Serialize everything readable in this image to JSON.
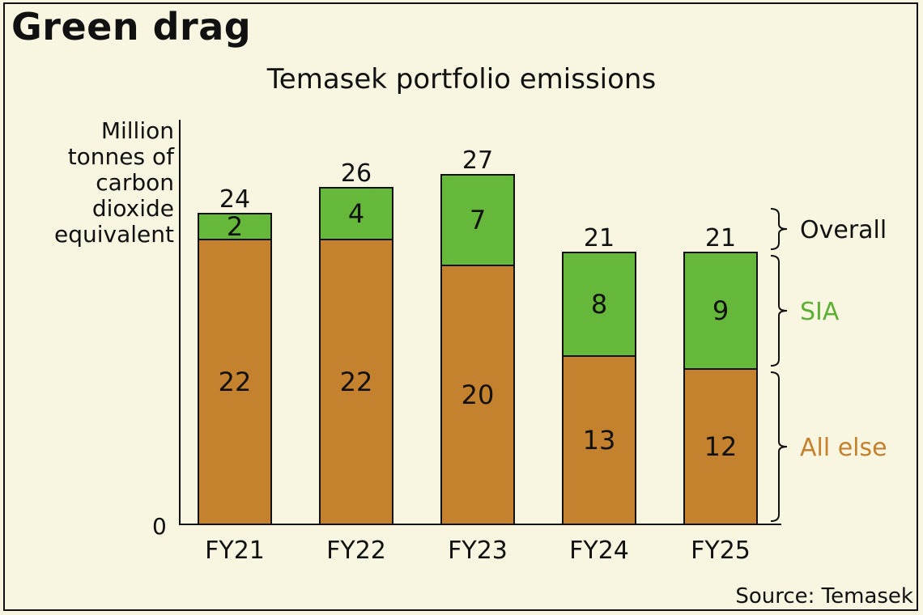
{
  "header": {
    "title": "Green drag",
    "subtitle": "Temasek portfolio emissions"
  },
  "footer": {
    "source": "Source: Temasek"
  },
  "colors": {
    "sia": "#66b83a",
    "all_else": "#c4812e",
    "sia_text": "#5cb034",
    "all_else_text": "#c4812e"
  },
  "chart_data": {
    "type": "bar",
    "stacked": true,
    "title": "Temasek portfolio emissions",
    "ylabel": "Million tonnes of carbon dioxide equivalent",
    "ylabel_lines": [
      "Million",
      "tonnes of",
      "carbon",
      "dioxide",
      "equivalent"
    ],
    "y_tick_labels": [
      "0"
    ],
    "ylim": [
      0,
      30
    ],
    "categories": [
      "FY21",
      "FY22",
      "FY23",
      "FY24",
      "FY25"
    ],
    "series": [
      {
        "name": "All else",
        "values": [
          22,
          22,
          20,
          13,
          12
        ]
      },
      {
        "name": "SIA",
        "values": [
          2,
          4,
          7,
          8,
          9
        ]
      }
    ],
    "totals": [
      24,
      26,
      27,
      21,
      21
    ],
    "bracket_labels": [
      "Overall",
      "SIA",
      "All else"
    ],
    "grid": false,
    "legend": "right, bracket annotations"
  }
}
